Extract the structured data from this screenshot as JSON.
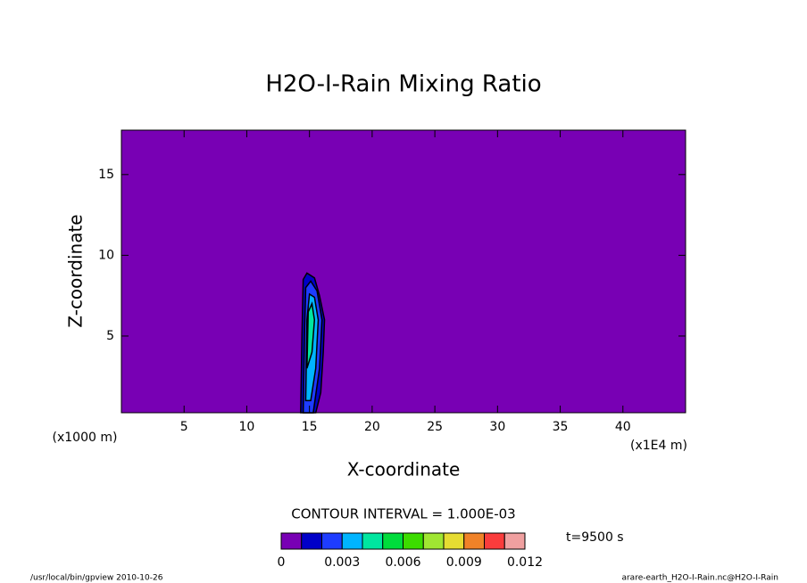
{
  "chart_data": {
    "type": "contour",
    "title": "H2O-I-Rain Mixing Ratio",
    "x_label": "X-coordinate",
    "y_label": "Z-coordinate",
    "x_unit_left": "(x1000 m)",
    "x_unit_right": "(x1E4 m)",
    "xlim": [
      0,
      45
    ],
    "ylim": [
      0.25,
      17.75
    ],
    "xticks": [
      5,
      10,
      15,
      20,
      25,
      30,
      35,
      40
    ],
    "yticks": [
      5,
      10,
      15
    ],
    "background_level": 0,
    "regions": [
      {
        "level": 0.001,
        "x": [
          14.3,
          14.4,
          14.5,
          14.8,
          15.4,
          15.8,
          16.2,
          16.1,
          15.9,
          15.5
        ],
        "z": [
          0.25,
          5,
          8.5,
          8.9,
          8.6,
          7.5,
          6,
          4,
          1.5,
          0.25
        ]
      },
      {
        "level": 0.002,
        "x": [
          14.5,
          14.6,
          14.7,
          15.1,
          15.6,
          16.0,
          15.8,
          15.3
        ],
        "z": [
          0.25,
          5,
          8.0,
          8.4,
          7.8,
          6,
          3,
          0.25
        ]
      },
      {
        "level": 0.003,
        "x": [
          14.7,
          14.8,
          15.0,
          15.4,
          15.7,
          15.5,
          15.1
        ],
        "z": [
          1,
          6,
          7.6,
          7.4,
          6,
          3,
          1
        ]
      },
      {
        "level": 0.004,
        "x": [
          14.8,
          14.9,
          15.2,
          15.4,
          15.2
        ],
        "z": [
          3,
          6.5,
          7,
          6,
          4
        ]
      }
    ],
    "contour_interval": "CONTOUR INTERVAL = 1.000E-03",
    "time_label": "t=9500 s",
    "levels": [
      0,
      0.001,
      0.002,
      0.003,
      0.004,
      0.005,
      0.006,
      0.007,
      0.008,
      0.009,
      0.01,
      0.011,
      0.012
    ],
    "colors": [
      "#7800b4",
      "#0000c8",
      "#1e3cff",
      "#00b4ff",
      "#00e6a0",
      "#00dc3c",
      "#3cdc00",
      "#a0e632",
      "#e6dc32",
      "#f08228",
      "#fa3c3c",
      "#f0a0a0"
    ],
    "colorbar_ticks": [
      0,
      0.003,
      0.006,
      0.009,
      0.012
    ],
    "footer_left": "/usr/local/bin/gpview  2010-10-26",
    "footer_right": "arare-earth_H2O-I-Rain.nc@H2O-I-Rain"
  }
}
